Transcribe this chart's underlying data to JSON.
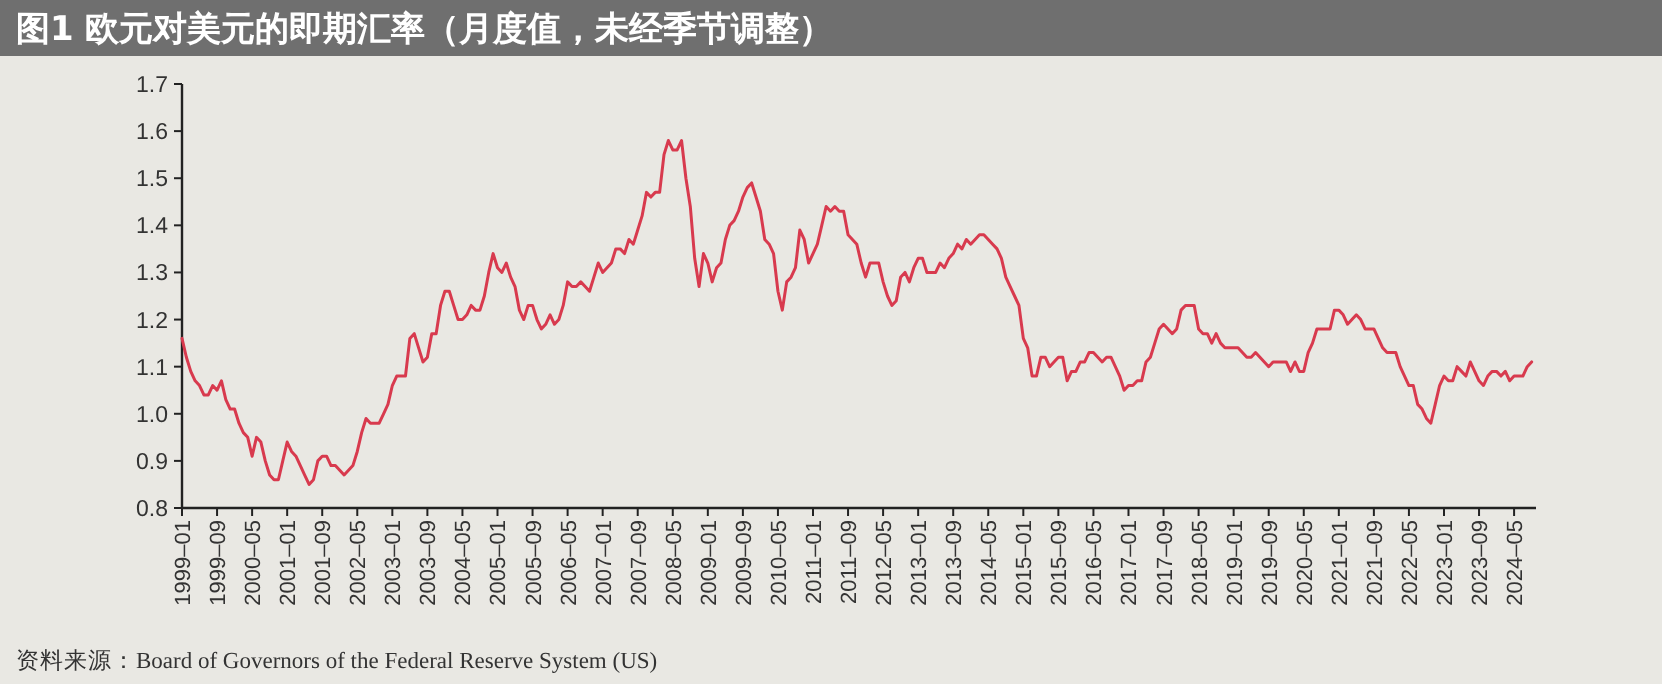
{
  "chart_data": {
    "type": "line",
    "title": "图1 欧元对美元的即期汇率（月度值，未经季节调整）",
    "annotations": [
      "资料来源：Board of Governors of the Federal Reserve System (US)"
    ],
    "color": "#d83a4e",
    "grid": false,
    "marker": "none",
    "line_style": "solid",
    "xlim": [
      "1999-01",
      "2024-10"
    ],
    "ylim": [
      0.8,
      1.7
    ],
    "yticks": [
      0.8,
      0.9,
      {
        "value": 1,
        "label": "1.0"
      },
      1.1,
      1.2,
      1.3,
      1.4,
      1.5,
      1.6,
      1.7
    ],
    "xticks": [
      {
        "value": "1999-01",
        "label": "1999–01"
      },
      {
        "value": "1999-09",
        "label": "1999–09"
      },
      {
        "value": "2000-05",
        "label": "2000–05"
      },
      {
        "value": "2001-01",
        "label": "2001–01"
      },
      {
        "value": "2001-09",
        "label": "2001–09"
      },
      {
        "value": "2002-05",
        "label": "2002–05"
      },
      {
        "value": "2003-01",
        "label": "2003–01"
      },
      {
        "value": "2003-09",
        "label": "2003–09"
      },
      {
        "value": "2004-05",
        "label": "2004–05"
      },
      {
        "value": "2005-01",
        "label": "2005–01"
      },
      {
        "value": "2005-09",
        "label": "2005–09"
      },
      {
        "value": "2006-05",
        "label": "2006–05"
      },
      {
        "value": "2007-01",
        "label": "2007–01"
      },
      {
        "value": "2007-09",
        "label": "2007–09"
      },
      {
        "value": "2008-05",
        "label": "2008–05"
      },
      {
        "value": "2009-01",
        "label": "2009–01"
      },
      {
        "value": "2009-09",
        "label": "2009–09"
      },
      {
        "value": "2010-05",
        "label": "2010–05"
      },
      {
        "value": "2011-01",
        "label": "2011–01"
      },
      {
        "value": "2011-09",
        "label": "2011–09"
      },
      {
        "value": "2012-05",
        "label": "2012–05"
      },
      {
        "value": "2013-01",
        "label": "2013–01"
      },
      {
        "value": "2013-09",
        "label": "2013–09"
      },
      {
        "value": "2014-05",
        "label": "2014–05"
      },
      {
        "value": "2015-01",
        "label": "2015–01"
      },
      {
        "value": "2015-09",
        "label": "2015–09"
      },
      {
        "value": "2016-05",
        "label": "2016–05"
      },
      {
        "value": "2017-01",
        "label": "2017–01"
      },
      {
        "value": "2017-09",
        "label": "2017–09"
      },
      {
        "value": "2018-05",
        "label": "2018–05"
      },
      {
        "value": "2019-01",
        "label": "2019–01"
      },
      {
        "value": "2019-09",
        "label": "2019–09"
      },
      {
        "value": "2020-05",
        "label": "2020–05"
      },
      {
        "value": "2021-01",
        "label": "2021–01"
      },
      {
        "value": "2021-09",
        "label": "2021–09"
      },
      {
        "value": "2022-05",
        "label": "2022–05"
      },
      {
        "value": "2023-01",
        "label": "2023–01"
      },
      {
        "value": "2023-09",
        "label": "2023–09"
      },
      {
        "value": "2024-05",
        "label": "2024–05"
      }
    ],
    "x": [
      "1999-01",
      "1999-02",
      "1999-03",
      "1999-04",
      "1999-05",
      "1999-06",
      "1999-07",
      "1999-08",
      "1999-09",
      "1999-10",
      "1999-11",
      "1999-12",
      "2000-01",
      "2000-02",
      "2000-03",
      "2000-04",
      "2000-05",
      "2000-06",
      "2000-07",
      "2000-08",
      "2000-09",
      "2000-10",
      "2000-11",
      "2000-12",
      "2001-01",
      "2001-02",
      "2001-03",
      "2001-04",
      "2001-05",
      "2001-06",
      "2001-07",
      "2001-08",
      "2001-09",
      "2001-10",
      "2001-11",
      "2001-12",
      "2002-01",
      "2002-02",
      "2002-03",
      "2002-04",
      "2002-05",
      "2002-06",
      "2002-07",
      "2002-08",
      "2002-09",
      "2002-10",
      "2002-11",
      "2002-12",
      "2003-01",
      "2003-02",
      "2003-03",
      "2003-04",
      "2003-05",
      "2003-06",
      "2003-07",
      "2003-08",
      "2003-09",
      "2003-10",
      "2003-11",
      "2003-12",
      "2004-01",
      "2004-02",
      "2004-03",
      "2004-04",
      "2004-05",
      "2004-06",
      "2004-07",
      "2004-08",
      "2004-09",
      "2004-10",
      "2004-11",
      "2004-12",
      "2005-01",
      "2005-02",
      "2005-03",
      "2005-04",
      "2005-05",
      "2005-06",
      "2005-07",
      "2005-08",
      "2005-09",
      "2005-10",
      "2005-11",
      "2005-12",
      "2006-01",
      "2006-02",
      "2006-03",
      "2006-04",
      "2006-05",
      "2006-06",
      "2006-07",
      "2006-08",
      "2006-09",
      "2006-10",
      "2006-11",
      "2006-12",
      "2007-01",
      "2007-02",
      "2007-03",
      "2007-04",
      "2007-05",
      "2007-06",
      "2007-07",
      "2007-08",
      "2007-09",
      "2007-10",
      "2007-11",
      "2007-12",
      "2008-01",
      "2008-02",
      "2008-03",
      "2008-04",
      "2008-05",
      "2008-06",
      "2008-07",
      "2008-08",
      "2008-09",
      "2008-10",
      "2008-11",
      "2008-12",
      "2009-01",
      "2009-02",
      "2009-03",
      "2009-04",
      "2009-05",
      "2009-06",
      "2009-07",
      "2009-08",
      "2009-09",
      "2009-10",
      "2009-11",
      "2009-12",
      "2010-01",
      "2010-02",
      "2010-03",
      "2010-04",
      "2010-05",
      "2010-06",
      "2010-07",
      "2010-08",
      "2010-09",
      "2010-10",
      "2010-11",
      "2010-12",
      "2011-01",
      "2011-02",
      "2011-03",
      "2011-04",
      "2011-05",
      "2011-06",
      "2011-07",
      "2011-08",
      "2011-09",
      "2011-10",
      "2011-11",
      "2011-12",
      "2012-01",
      "2012-02",
      "2012-03",
      "2012-04",
      "2012-05",
      "2012-06",
      "2012-07",
      "2012-08",
      "2012-09",
      "2012-10",
      "2012-11",
      "2012-12",
      "2013-01",
      "2013-02",
      "2013-03",
      "2013-04",
      "2013-05",
      "2013-06",
      "2013-07",
      "2013-08",
      "2013-09",
      "2013-10",
      "2013-11",
      "2013-12",
      "2014-01",
      "2014-02",
      "2014-03",
      "2014-04",
      "2014-05",
      "2014-06",
      "2014-07",
      "2014-08",
      "2014-09",
      "2014-10",
      "2014-11",
      "2014-12",
      "2015-01",
      "2015-02",
      "2015-03",
      "2015-04",
      "2015-05",
      "2015-06",
      "2015-07",
      "2015-08",
      "2015-09",
      "2015-10",
      "2015-11",
      "2015-12",
      "2016-01",
      "2016-02",
      "2016-03",
      "2016-04",
      "2016-05",
      "2016-06",
      "2016-07",
      "2016-08",
      "2016-09",
      "2016-10",
      "2016-11",
      "2016-12",
      "2017-01",
      "2017-02",
      "2017-03",
      "2017-04",
      "2017-05",
      "2017-06",
      "2017-07",
      "2017-08",
      "2017-09",
      "2017-10",
      "2017-11",
      "2017-12",
      "2018-01",
      "2018-02",
      "2018-03",
      "2018-04",
      "2018-05",
      "2018-06",
      "2018-07",
      "2018-08",
      "2018-09",
      "2018-10",
      "2018-11",
      "2018-12",
      "2019-01",
      "2019-02",
      "2019-03",
      "2019-04",
      "2019-05",
      "2019-06",
      "2019-07",
      "2019-08",
      "2019-09",
      "2019-10",
      "2019-11",
      "2019-12",
      "2020-01",
      "2020-02",
      "2020-03",
      "2020-04",
      "2020-05",
      "2020-06",
      "2020-07",
      "2020-08",
      "2020-09",
      "2020-10",
      "2020-11",
      "2020-12",
      "2021-01",
      "2021-02",
      "2021-03",
      "2021-04",
      "2021-05",
      "2021-06",
      "2021-07",
      "2021-08",
      "2021-09",
      "2021-10",
      "2021-11",
      "2021-12",
      "2022-01",
      "2022-02",
      "2022-03",
      "2022-04",
      "2022-05",
      "2022-06",
      "2022-07",
      "2022-08",
      "2022-09",
      "2022-10",
      "2022-11",
      "2022-12",
      "2023-01",
      "2023-02",
      "2023-03",
      "2023-04",
      "2023-05",
      "2023-06",
      "2023-07",
      "2023-08",
      "2023-09",
      "2023-10",
      "2023-11",
      "2023-12",
      "2024-01",
      "2024-02",
      "2024-03",
      "2024-04",
      "2024-05",
      "2024-06",
      "2024-07",
      "2024-08",
      "2024-09"
    ],
    "values": [
      1.16,
      1.12,
      1.09,
      1.07,
      1.06,
      1.04,
      1.04,
      1.06,
      1.05,
      1.07,
      1.03,
      1.01,
      1.01,
      0.98,
      0.96,
      0.95,
      0.91,
      0.95,
      0.94,
      0.9,
      0.87,
      0.86,
      0.86,
      0.9,
      0.94,
      0.92,
      0.91,
      0.89,
      0.87,
      0.85,
      0.86,
      0.9,
      0.91,
      0.91,
      0.89,
      0.89,
      0.88,
      0.87,
      0.88,
      0.89,
      0.92,
      0.96,
      0.99,
      0.98,
      0.98,
      0.98,
      1.0,
      1.02,
      1.06,
      1.08,
      1.08,
      1.08,
      1.16,
      1.17,
      1.14,
      1.11,
      1.12,
      1.17,
      1.17,
      1.23,
      1.26,
      1.26,
      1.23,
      1.2,
      1.2,
      1.21,
      1.23,
      1.22,
      1.22,
      1.25,
      1.3,
      1.34,
      1.31,
      1.3,
      1.32,
      1.29,
      1.27,
      1.22,
      1.2,
      1.23,
      1.23,
      1.2,
      1.18,
      1.19,
      1.21,
      1.19,
      1.2,
      1.23,
      1.28,
      1.27,
      1.27,
      1.28,
      1.27,
      1.26,
      1.29,
      1.32,
      1.3,
      1.31,
      1.32,
      1.35,
      1.35,
      1.34,
      1.37,
      1.36,
      1.39,
      1.42,
      1.47,
      1.46,
      1.47,
      1.47,
      1.55,
      1.58,
      1.56,
      1.56,
      1.58,
      1.5,
      1.44,
      1.33,
      1.27,
      1.34,
      1.32,
      1.28,
      1.31,
      1.32,
      1.37,
      1.4,
      1.41,
      1.43,
      1.46,
      1.48,
      1.49,
      1.46,
      1.43,
      1.37,
      1.36,
      1.34,
      1.26,
      1.22,
      1.28,
      1.29,
      1.31,
      1.39,
      1.37,
      1.32,
      1.34,
      1.36,
      1.4,
      1.44,
      1.43,
      1.44,
      1.43,
      1.43,
      1.38,
      1.37,
      1.36,
      1.32,
      1.29,
      1.32,
      1.32,
      1.32,
      1.28,
      1.25,
      1.23,
      1.24,
      1.29,
      1.3,
      1.28,
      1.31,
      1.33,
      1.33,
      1.3,
      1.3,
      1.3,
      1.32,
      1.31,
      1.33,
      1.34,
      1.36,
      1.35,
      1.37,
      1.36,
      1.37,
      1.38,
      1.38,
      1.37,
      1.36,
      1.35,
      1.33,
      1.29,
      1.27,
      1.25,
      1.23,
      1.16,
      1.14,
      1.08,
      1.08,
      1.12,
      1.12,
      1.1,
      1.11,
      1.12,
      1.12,
      1.07,
      1.09,
      1.09,
      1.11,
      1.11,
      1.13,
      1.13,
      1.12,
      1.11,
      1.12,
      1.12,
      1.1,
      1.08,
      1.05,
      1.06,
      1.06,
      1.07,
      1.07,
      1.11,
      1.12,
      1.15,
      1.18,
      1.19,
      1.18,
      1.17,
      1.18,
      1.22,
      1.23,
      1.23,
      1.23,
      1.18,
      1.17,
      1.17,
      1.15,
      1.17,
      1.15,
      1.14,
      1.14,
      1.14,
      1.14,
      1.13,
      1.12,
      1.12,
      1.13,
      1.12,
      1.11,
      1.1,
      1.11,
      1.11,
      1.11,
      1.11,
      1.09,
      1.11,
      1.09,
      1.09,
      1.13,
      1.15,
      1.18,
      1.18,
      1.18,
      1.18,
      1.22,
      1.22,
      1.21,
      1.19,
      1.2,
      1.21,
      1.2,
      1.18,
      1.18,
      1.18,
      1.16,
      1.14,
      1.13,
      1.13,
      1.13,
      1.1,
      1.08,
      1.06,
      1.06,
      1.02,
      1.01,
      0.99,
      0.98,
      1.02,
      1.06,
      1.08,
      1.07,
      1.07,
      1.1,
      1.09,
      1.08,
      1.11,
      1.09,
      1.07,
      1.06,
      1.08,
      1.09,
      1.09,
      1.08,
      1.09,
      1.07,
      1.08,
      1.08,
      1.08,
      1.1,
      1.11
    ]
  }
}
